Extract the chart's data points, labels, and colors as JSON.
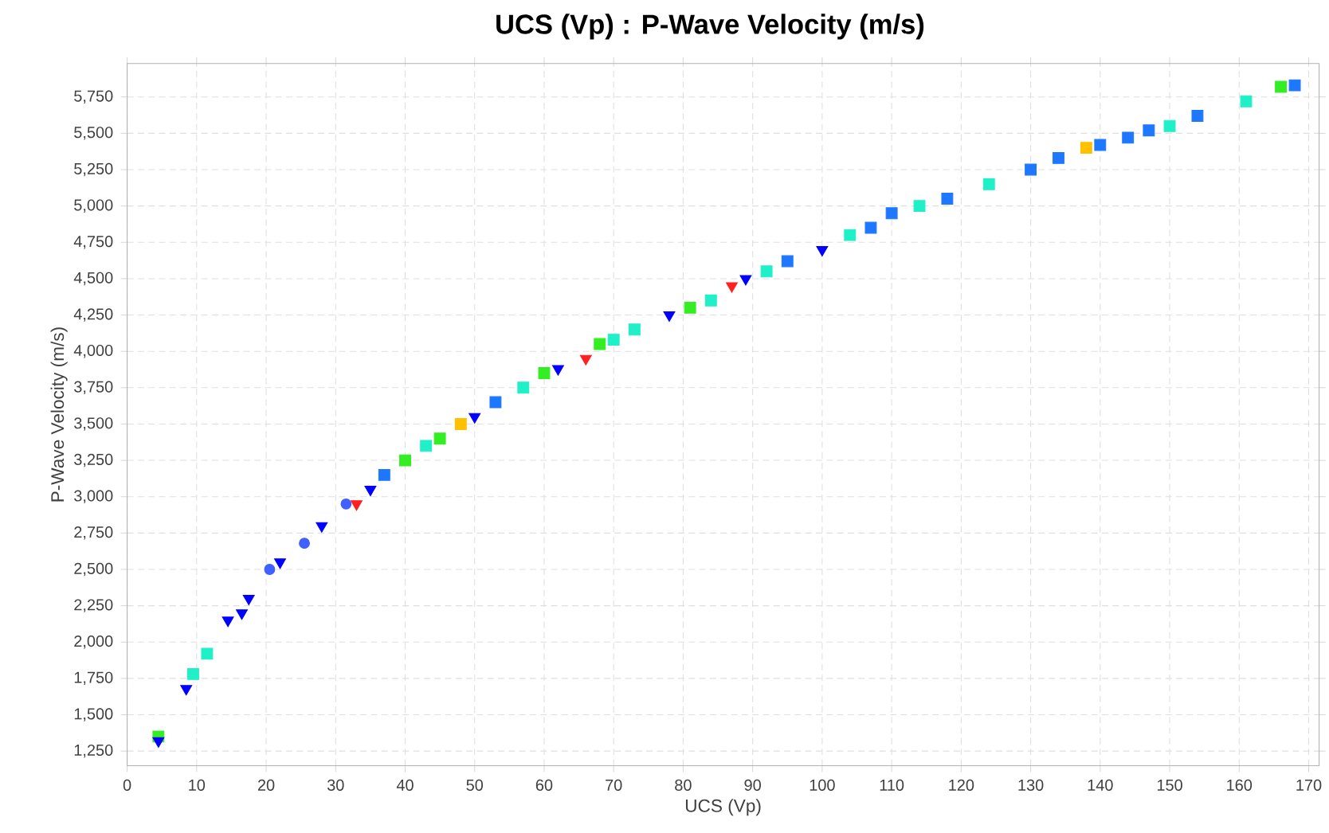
{
  "chart_data": {
    "type": "scatter",
    "title": "UCS (Vp) : P-Wave Velocity (m/s)",
    "xlabel": "UCS (Vp)",
    "ylabel": "P-Wave Velocity (m/s)",
    "xlim": [
      0,
      171.5
    ],
    "ylim": [
      1150,
      5980
    ],
    "xticks": [
      0,
      10,
      20,
      30,
      40,
      50,
      60,
      70,
      80,
      90,
      100,
      110,
      120,
      130,
      140,
      150,
      160,
      170
    ],
    "yticks": [
      {
        "value": 1250,
        "label": "1,250"
      },
      {
        "value": 1500,
        "label": "1,500"
      },
      {
        "value": 1750,
        "label": "1,750"
      },
      {
        "value": 2000,
        "label": "2,000"
      },
      {
        "value": 2250,
        "label": "2,250"
      },
      {
        "value": 2500,
        "label": "2,500"
      },
      {
        "value": 2750,
        "label": "2,750"
      },
      {
        "value": 3000,
        "label": "3,000"
      },
      {
        "value": 3250,
        "label": "3,250"
      },
      {
        "value": 3500,
        "label": "3,500"
      },
      {
        "value": 3750,
        "label": "3,750"
      },
      {
        "value": 4000,
        "label": "4,000"
      },
      {
        "value": 4250,
        "label": "4,250"
      },
      {
        "value": 4500,
        "label": "4,500"
      },
      {
        "value": 4750,
        "label": "4,750"
      },
      {
        "value": 5000,
        "label": "5,000"
      },
      {
        "value": 5250,
        "label": "5,250"
      },
      {
        "value": 5500,
        "label": "5,500"
      },
      {
        "value": 5750,
        "label": "5,750"
      }
    ],
    "grid": true,
    "marker": "square",
    "series": [
      {
        "color": "#1e78ff",
        "x": [
          37,
          53,
          95,
          107,
          110,
          118,
          130,
          134,
          140,
          144,
          147,
          154,
          168
        ],
        "values": [
          3150,
          3650,
          4620,
          4850,
          4950,
          5050,
          5250,
          5330,
          5420,
          5470,
          5520,
          5620,
          5830
        ]
      },
      {
        "color": "#20f0c8",
        "x": [
          9.5,
          11.5,
          43,
          57,
          70,
          73,
          84,
          92,
          104,
          114,
          124,
          150,
          161
        ],
        "values": [
          1780,
          1920,
          3350,
          3750,
          4080,
          4150,
          4350,
          4550,
          4800,
          5000,
          5150,
          5550,
          5720
        ]
      },
      {
        "color": "#33ee22",
        "x": [
          4.5,
          40,
          45,
          60,
          68,
          81,
          166
        ],
        "values": [
          1350,
          3250,
          3400,
          3850,
          4050,
          4300,
          5820
        ]
      },
      {
        "color": "#ffc000",
        "x": [
          48,
          138
        ],
        "values": [
          3500,
          5400
        ]
      },
      {
        "color": "#0000ff",
        "marker": "triangle",
        "x": [
          4.5,
          8.5,
          14.5,
          16.5,
          17.5,
          22,
          28,
          35,
          50,
          62,
          78,
          89,
          100
        ],
        "values": [
          1320,
          1680,
          2150,
          2200,
          2300,
          2550,
          2800,
          3050,
          3550,
          3880,
          4250,
          4500,
          4700
        ]
      },
      {
        "color": "#4060ff",
        "marker": "circle",
        "x": [
          20.5,
          25.5,
          31.5
        ],
        "values": [
          2500,
          2680,
          2950
        ]
      },
      {
        "color": "#ff2020",
        "marker": "triangle",
        "x": [
          33,
          66,
          87
        ],
        "values": [
          2950,
          3950,
          4450
        ]
      }
    ]
  }
}
